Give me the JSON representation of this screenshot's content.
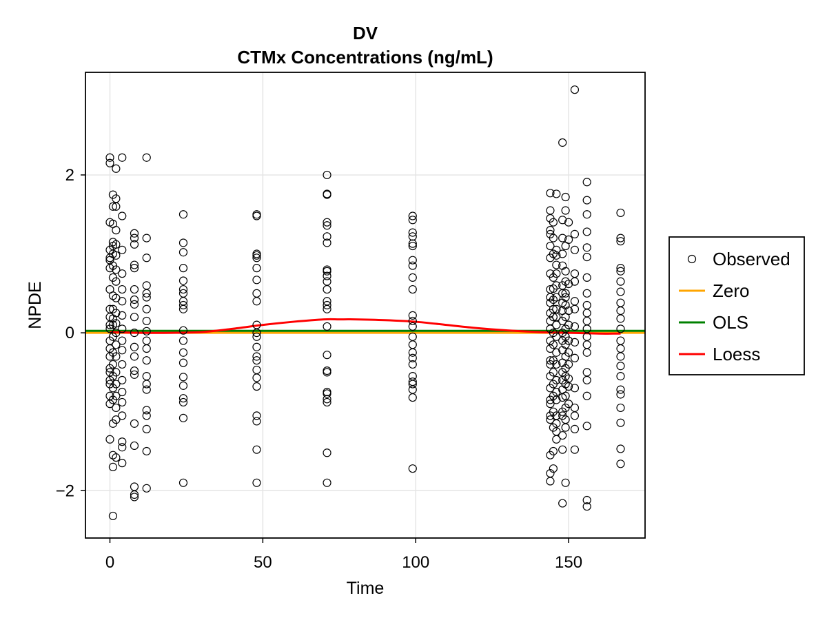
{
  "chart_data": {
    "type": "scatter",
    "title": "DV",
    "subtitle": "CTMx Concentrations (ng/mL)",
    "xlabel": "Time",
    "ylabel": "NPDE",
    "xlim": [
      -8,
      175
    ],
    "ylim": [
      -2.6,
      3.3
    ],
    "xticks": [
      0,
      50,
      100,
      150
    ],
    "yticks": [
      -2,
      0,
      2
    ],
    "xtick_labels": [
      "0",
      "50",
      "100",
      "150"
    ],
    "ytick_labels": [
      "−2",
      "0",
      "2"
    ],
    "grid": true,
    "legend": {
      "placement": "right",
      "entries": [
        {
          "label": "Observed",
          "kind": "marker",
          "color": "#000000"
        },
        {
          "label": "Zero",
          "kind": "line",
          "color": "#FFA500"
        },
        {
          "label": "OLS",
          "kind": "line",
          "color": "#008000"
        },
        {
          "label": "Loess",
          "kind": "line",
          "color": "#FF0000"
        }
      ]
    },
    "series": [
      {
        "name": "Observed",
        "groups": [
          {
            "x": 0,
            "y": [
              2.22,
              2.15,
              1.4,
              1.05,
              0.95,
              0.92,
              0.82,
              0.55,
              0.3,
              0.2,
              0.1,
              0.05,
              -0.1,
              -0.2,
              -0.3,
              -0.45,
              -0.5,
              -0.6,
              -0.65,
              -0.8,
              -0.9,
              -1.35
            ]
          },
          {
            "x": 1,
            "y": [
              1.75,
              1.6,
              1.38,
              1.15,
              1.1,
              1.0,
              0.85,
              0.7,
              0.47,
              0.3,
              0.18,
              0.1,
              -0.05,
              -0.25,
              -0.4,
              -0.55,
              -0.7,
              -0.85,
              -1.15,
              -1.55,
              -1.7,
              -2.32
            ]
          },
          {
            "x": 2,
            "y": [
              2.08,
              1.7,
              1.6,
              1.3,
              1.12,
              0.98,
              0.8,
              0.65,
              0.44,
              0.25,
              0.12,
              0.0,
              -0.15,
              -0.3,
              -0.5,
              -0.65,
              -0.8,
              -0.95,
              -1.1,
              -1.58
            ]
          },
          {
            "x": 4,
            "y": [
              2.22,
              1.48,
              1.05,
              0.75,
              0.55,
              0.4,
              0.22,
              0.05,
              -0.1,
              -0.22,
              -0.4,
              -0.6,
              -0.75,
              -0.88,
              -1.05,
              -1.38,
              -1.45,
              -1.65
            ]
          },
          {
            "x": 8,
            "y": [
              1.26,
              1.2,
              1.12,
              0.86,
              0.82,
              0.55,
              0.42,
              0.36,
              0.2,
              0.0,
              -0.18,
              -0.3,
              -0.48,
              -0.53,
              -1.15,
              -1.43,
              -1.95,
              -2.05,
              -2.08
            ]
          },
          {
            "x": 12,
            "y": [
              2.22,
              1.2,
              0.95,
              0.6,
              0.5,
              0.45,
              0.3,
              0.15,
              0.02,
              -0.1,
              -0.2,
              -0.35,
              -0.55,
              -0.65,
              -0.72,
              -0.98,
              -1.05,
              -1.22,
              -1.5,
              -1.97
            ]
          },
          {
            "x": 24,
            "y": [
              1.5,
              1.14,
              1.02,
              0.82,
              0.66,
              0.55,
              0.5,
              0.4,
              0.35,
              0.3,
              0.03,
              -0.1,
              -0.25,
              -0.38,
              -0.56,
              -0.67,
              -0.83,
              -0.88,
              -1.08,
              -1.9
            ]
          },
          {
            "x": 48,
            "y": [
              1.5,
              1.48,
              1.0,
              0.98,
              0.95,
              0.82,
              0.67,
              0.5,
              0.4,
              0.1,
              0.0,
              -0.05,
              -0.18,
              -0.3,
              -0.35,
              -0.47,
              -0.57,
              -0.68,
              -1.05,
              -1.12,
              -1.48,
              -1.9
            ]
          },
          {
            "x": 71,
            "y": [
              2.0,
              1.76,
              1.75,
              1.4,
              1.36,
              1.22,
              1.14,
              0.8,
              0.78,
              0.72,
              0.65,
              0.55,
              0.4,
              0.35,
              0.3,
              0.08,
              -0.28,
              -0.48,
              -0.5,
              -0.75,
              -0.77,
              -0.84,
              -0.88,
              -1.52,
              -1.9
            ]
          },
          {
            "x": 99,
            "y": [
              1.48,
              1.43,
              1.27,
              1.22,
              1.13,
              1.1,
              0.92,
              0.85,
              0.7,
              0.55,
              0.22,
              0.15,
              0.08,
              -0.05,
              -0.15,
              -0.25,
              -0.32,
              -0.4,
              -0.55,
              -0.62,
              -0.65,
              -0.72,
              -0.82,
              -1.72
            ]
          },
          {
            "x": 144,
            "y": [
              1.77,
              1.55,
              1.45,
              1.3,
              1.25,
              1.1,
              0.95,
              0.75,
              0.55,
              0.45,
              0.38,
              0.25,
              0.15,
              0.05,
              -0.1,
              -0.2,
              -0.35,
              -0.4,
              -0.55,
              -0.7,
              -0.85,
              -0.9,
              -1.05,
              -1.1,
              -1.55,
              -1.78,
              -1.88
            ]
          },
          {
            "x": 145,
            "y": [
              1.4,
              1.2,
              1.0,
              0.7,
              0.56,
              0.42,
              0.3,
              0.2,
              0.0,
              -0.15,
              -0.35,
              -0.5,
              -0.65,
              -0.8,
              -1.0,
              -1.2,
              -1.5,
              -1.72
            ]
          },
          {
            "x": 146,
            "y": [
              1.76,
              1.05,
              0.98,
              0.86,
              0.75,
              0.6,
              0.45,
              0.3,
              0.2,
              0.1,
              -0.05,
              -0.25,
              -0.4,
              -0.6,
              -0.75,
              -0.85,
              -1.05,
              -1.15,
              -1.25,
              -1.35
            ]
          },
          {
            "x": 148,
            "y": [
              2.41,
              1.43,
              1.2,
              1.0,
              0.85,
              0.6,
              0.5,
              0.38,
              0.28,
              0.15,
              0.0,
              -0.1,
              -0.22,
              -0.38,
              -0.5,
              -0.6,
              -0.72,
              -0.82,
              -1.0,
              -1.05,
              -1.3,
              -1.48,
              -2.16
            ]
          },
          {
            "x": 149,
            "y": [
              1.72,
              1.55,
              1.1,
              0.78,
              0.65,
              0.5,
              0.45,
              0.35,
              0.2,
              0.05,
              -0.05,
              -0.15,
              -0.3,
              -0.45,
              -0.55,
              -0.65,
              -0.8,
              -0.95,
              -1.1,
              -1.2,
              -1.9
            ]
          },
          {
            "x": 150,
            "y": [
              1.4,
              1.18,
              0.62,
              0.28,
              0.1,
              -0.1,
              -0.25,
              -0.4,
              -0.58,
              -0.68,
              -0.9
            ]
          },
          {
            "x": 152,
            "y": [
              3.08,
              1.25,
              1.05,
              0.75,
              0.65,
              0.4,
              0.3,
              0.08,
              -0.12,
              -0.32,
              -0.7,
              -0.95,
              -1.05,
              -1.22,
              -1.48
            ]
          },
          {
            "x": 156,
            "y": [
              1.91,
              1.68,
              1.5,
              1.28,
              1.08,
              0.96,
              0.7,
              0.5,
              0.35,
              0.25,
              0.15,
              0.05,
              -0.05,
              -0.15,
              -0.25,
              -0.5,
              -0.6,
              -0.8,
              -1.18,
              -2.12,
              -2.2
            ]
          },
          {
            "x": 167,
            "y": [
              1.52,
              1.2,
              1.16,
              0.82,
              0.78,
              0.65,
              0.52,
              0.38,
              0.28,
              0.18,
              0.05,
              -0.1,
              -0.2,
              -0.3,
              -0.42,
              -0.55,
              -0.72,
              -0.78,
              -0.95,
              -1.14,
              -1.47,
              -1.66
            ]
          }
        ]
      },
      {
        "name": "Zero",
        "x": [
          -8,
          175
        ],
        "y": [
          0,
          0
        ]
      },
      {
        "name": "OLS",
        "x": [
          -8,
          175
        ],
        "y": [
          0.025,
          0.025
        ]
      },
      {
        "name": "Loess",
        "x": [
          0,
          10,
          20,
          30,
          40,
          50,
          60,
          70,
          75,
          80,
          90,
          100,
          110,
          120,
          130,
          140,
          150,
          160,
          167
        ],
        "y": [
          0.01,
          0.0,
          0.0,
          0.01,
          0.05,
          0.1,
          0.14,
          0.17,
          0.17,
          0.17,
          0.16,
          0.14,
          0.1,
          0.06,
          0.03,
          0.01,
          0.0,
          -0.01,
          -0.01
        ]
      }
    ]
  }
}
